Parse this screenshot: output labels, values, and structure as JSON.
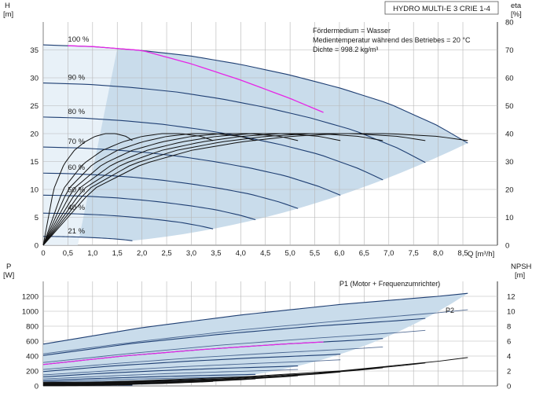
{
  "chart_data": [
    {
      "type": "line",
      "title": "HYDRO MULTI-E 3 CRIE 1-4",
      "ylabel": "H",
      "yunit": "[m]",
      "y2label": "eta",
      "y2unit": "[%]",
      "xlabel": "Q",
      "xunit": "[m³/h]",
      "xlim": [
        0,
        9.2
      ],
      "ylim": [
        0,
        40
      ],
      "y2lim": [
        0,
        80
      ],
      "xticks": [
        "0",
        "0,5",
        "1,0",
        "1,5",
        "2,0",
        "2,5",
        "3,0",
        "3,5",
        "4,0",
        "4,5",
        "5,0",
        "5,5",
        "6,0",
        "6,5",
        "7,0",
        "7,5",
        "8,0",
        "8,5"
      ],
      "yticks": [
        "0",
        "5",
        "10",
        "15",
        "20",
        "25",
        "30",
        "35"
      ],
      "y2ticks": [
        "0",
        "10",
        "20",
        "30",
        "40",
        "50",
        "60",
        "70",
        "80"
      ],
      "grid": true,
      "notes": [
        "Fördermedium = Wasser",
        "Medientemperatur während des Betriebes = 20 °C",
        "Dichte = 998.2 kg/m³"
      ],
      "speed_labels": [
        "100 %",
        "90 %",
        "80 %",
        "70 %",
        "60 %",
        "50 %",
        "40 %",
        "21 %"
      ],
      "speed_fractions": [
        1.0,
        0.9,
        0.8,
        0.7,
        0.6,
        0.5,
        0.4,
        0.21
      ],
      "head_curve_100": {
        "Q": [
          0,
          1,
          2,
          3,
          4,
          5,
          6,
          7,
          8,
          8.6
        ],
        "H": [
          35.9,
          35.6,
          34.9,
          33.9,
          32.4,
          30.5,
          28.2,
          25.4,
          21.4,
          18.3
        ]
      },
      "eta_curve_100": {
        "Q": [
          0,
          1,
          2,
          3,
          4,
          5,
          6,
          7,
          8,
          8.6
        ],
        "eta": [
          0,
          20,
          29,
          34,
          37,
          39,
          40,
          40,
          39,
          37.5
        ]
      },
      "qmax_100": 8.6,
      "colors": {
        "region": "#c9dceb",
        "head": "#1f3f73",
        "eta": "#111111",
        "highlight": "#e626e6",
        "grid": "#b5b5b5"
      }
    },
    {
      "type": "line",
      "ylabel": "P",
      "yunit": "[W]",
      "y2label": "NPSH",
      "y2unit": "[m]",
      "ylim": [
        0,
        1400
      ],
      "y2lim": [
        0,
        14
      ],
      "yticks": [
        "0",
        "200",
        "400",
        "600",
        "800",
        "1000",
        "1200"
      ],
      "y2ticks": [
        "0",
        "2",
        "4",
        "6",
        "8",
        "10",
        "12"
      ],
      "series_labels": [
        "P1 (Motor + Frequenzumrichter)",
        "P2"
      ],
      "p1_curve_100": {
        "Q": [
          0,
          2,
          4,
          6,
          8,
          8.6
        ],
        "P": [
          560,
          780,
          950,
          1090,
          1200,
          1240
        ]
      },
      "p2_curve_100": {
        "Q": [
          0,
          2,
          4,
          6,
          8,
          8.6
        ],
        "P": [
          430,
          600,
          750,
          870,
          980,
          1020
        ]
      },
      "npsh_curve_100": {
        "Q": [
          1,
          2,
          4,
          6,
          8,
          8.6
        ],
        "NPSH": [
          0.5,
          0.7,
          1.2,
          2.0,
          3.3,
          3.8
        ]
      }
    }
  ]
}
